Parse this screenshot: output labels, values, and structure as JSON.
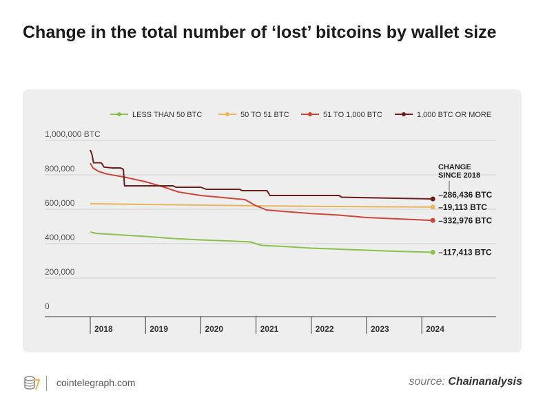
{
  "title": "Change in the total number of ‘lost’ bitcoins by wallet size",
  "footer": {
    "site": "cointelegraph.com",
    "source_label": "source:",
    "source_name": "Chainanalysis"
  },
  "chart_data": {
    "type": "line",
    "title": "Change in the total number of ‘lost’ bitcoins by wallet size",
    "xlabel": "",
    "ylabel": "",
    "xlim": [
      2017.2,
      2025.35
    ],
    "ylim": [
      0,
      1000000
    ],
    "yticks": [
      0,
      200000,
      400000,
      600000,
      800000,
      1000000
    ],
    "ytick_labels": [
      "0",
      "200,000",
      "400,000",
      "600,000",
      "800,000",
      "1,000,000 BTC"
    ],
    "xticks": [
      2018,
      2019,
      2020,
      2021,
      2022,
      2023,
      2024
    ],
    "xtick_labels": [
      "2018",
      "2019",
      "2020",
      "2021",
      "2022",
      "2023",
      "2024"
    ],
    "grid": "horizontal",
    "legend": "top",
    "annotation_header": "CHANGE SINCE 2018",
    "series": [
      {
        "name": "LESS THAN 50 BTC",
        "color": "#8dbf4f",
        "change_label": "–117,413 BTC",
        "x": [
          2018.0,
          2018.1,
          2018.5,
          2019.0,
          2019.5,
          2020.0,
          2020.5,
          2020.9,
          2021.1,
          2021.5,
          2022.0,
          2022.5,
          2023.0,
          2023.5,
          2024.2
        ],
        "y": [
          448000,
          440000,
          432000,
          422000,
          410000,
          402000,
          396000,
          390000,
          370000,
          364000,
          354000,
          348000,
          342000,
          336000,
          330000
        ]
      },
      {
        "name": "50 TO 51 BTC",
        "color": "#e8b45c",
        "change_label": "–19,113 BTC",
        "x": [
          2018.0,
          2019.0,
          2020.0,
          2021.0,
          2022.0,
          2023.0,
          2024.2
        ],
        "y": [
          612000,
          608000,
          604000,
          600000,
          597000,
          595000,
          593000
        ]
      },
      {
        "name": "51 TO 1,000 BTC",
        "color": "#c8463a",
        "change_label": "–332,976 BTC",
        "x": [
          2018.0,
          2018.05,
          2018.15,
          2018.3,
          2018.6,
          2019.0,
          2019.3,
          2019.6,
          2020.0,
          2020.4,
          2020.8,
          2021.0,
          2021.2,
          2021.6,
          2022.0,
          2022.5,
          2023.0,
          2023.5,
          2024.2
        ],
        "y": [
          848000,
          820000,
          800000,
          785000,
          768000,
          740000,
          712000,
          680000,
          660000,
          648000,
          636000,
          600000,
          575000,
          565000,
          555000,
          546000,
          532000,
          525000,
          515000
        ]
      },
      {
        "name": "1,000 BTC OR MORE",
        "color": "#6a1d1d",
        "change_label": "–286,436 BTC",
        "x": [
          2018.0,
          2018.03,
          2018.06,
          2018.2,
          2018.25,
          2018.4,
          2018.55,
          2018.6,
          2018.62,
          2019.5,
          2019.55,
          2020.0,
          2020.1,
          2020.7,
          2020.75,
          2021.2,
          2021.25,
          2022.5,
          2022.55,
          2024.2
        ],
        "y": [
          924000,
          900000,
          850000,
          850000,
          825000,
          820000,
          820000,
          812000,
          716000,
          716000,
          708000,
          708000,
          696000,
          696000,
          688000,
          688000,
          660000,
          660000,
          650000,
          640000
        ]
      }
    ]
  }
}
